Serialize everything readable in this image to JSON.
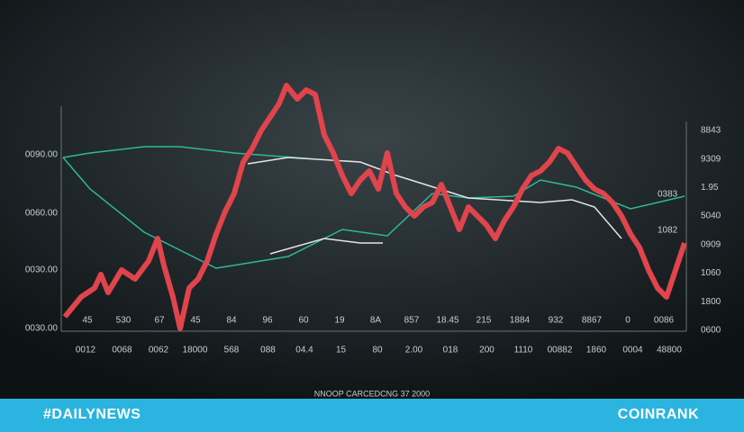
{
  "left_axis": [
    "0090.00",
    "0060.00",
    "0030.00",
    "0030.00"
  ],
  "right_axis": [
    "8843",
    "9309",
    "1.95",
    "5040",
    "0909",
    "1060",
    "1800",
    "0600"
  ],
  "annotations": [
    "0383",
    "1082"
  ],
  "x_labels_top": [
    "45",
    "530",
    "67",
    "45",
    "84",
    "96",
    "60",
    "19",
    "8A",
    "857",
    "18.45",
    "215",
    "1884",
    "932",
    "8867",
    "0",
    "0086"
  ],
  "x_labels_bottom": [
    "0012",
    "0068",
    "0062",
    "18000",
    "568",
    "088",
    "04.4",
    "15",
    "80",
    "2.00",
    "018",
    "200",
    "1110",
    "00882",
    "1860",
    "0004",
    "48800"
  ],
  "caption": "NNOOP CARCEDCNG 37 2000",
  "banner": {
    "left": "#DAILYNEWS",
    "right": "COINRANK"
  }
}
